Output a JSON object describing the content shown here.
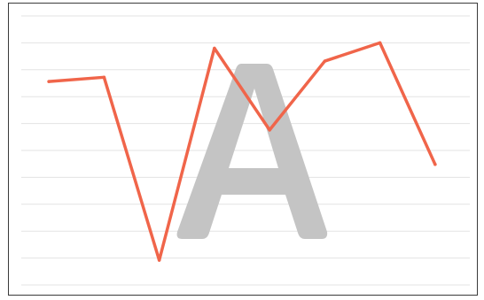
{
  "chart_data": {
    "type": "line",
    "x": [
      1,
      2,
      3,
      4,
      5,
      6,
      7,
      8
    ],
    "series": [
      {
        "values": [
          69.5,
          71.5,
          -13.5,
          85.0,
          47.0,
          79.0,
          87.5,
          31.0
        ]
      }
    ],
    "xlim": [
      0.5,
      8.5
    ],
    "ylim": [
      -25,
      100
    ],
    "grid": true,
    "legend": "none",
    "line_color": "#f0654a",
    "grid_color": "#e3e3e3",
    "watermark_color": "#c4c4c4"
  },
  "watermark": {
    "letter": "A"
  }
}
